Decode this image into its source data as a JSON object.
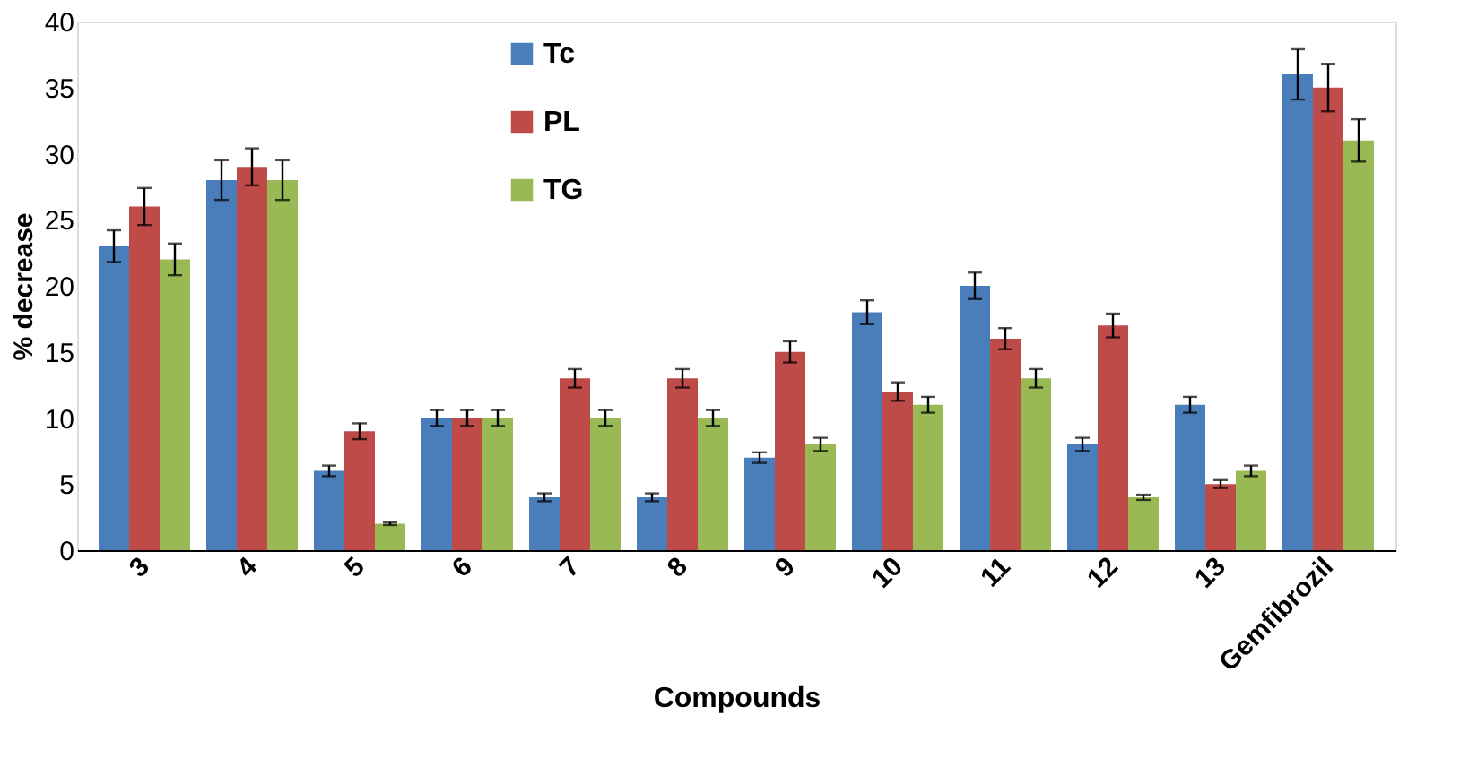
{
  "chart_data": {
    "type": "bar",
    "xlabel": "Compounds",
    "ylabel": "% decrease",
    "categories": [
      "3",
      "4",
      "5",
      "6",
      "7",
      "8",
      "9",
      "10",
      "11",
      "12",
      "13",
      "Gemfibrozil"
    ],
    "series": [
      {
        "name": "Tc",
        "color": "#4a7ebb",
        "values": [
          23,
          28,
          6,
          10,
          4,
          4,
          7,
          18,
          20,
          8,
          11,
          36
        ],
        "errors": [
          1.2,
          1.5,
          0.4,
          0.6,
          0.3,
          0.3,
          0.4,
          0.9,
          1,
          0.5,
          0.6,
          1.9
        ]
      },
      {
        "name": "PL",
        "color": "#be4b48",
        "values": [
          26,
          29,
          9,
          10,
          13,
          13,
          15,
          12,
          16,
          17,
          5,
          35
        ],
        "errors": [
          1.4,
          1.4,
          0.6,
          0.6,
          0.7,
          0.7,
          0.8,
          0.7,
          0.8,
          0.9,
          0.3,
          1.8
        ]
      },
      {
        "name": "TG",
        "color": "#98b954",
        "values": [
          22,
          28,
          2,
          10,
          10,
          10,
          8,
          11,
          13,
          4,
          6,
          31
        ],
        "errors": [
          1.2,
          1.5,
          0.1,
          0.6,
          0.6,
          0.6,
          0.5,
          0.6,
          0.7,
          0.2,
          0.4,
          1.6
        ]
      }
    ],
    "ylim": [
      0,
      40
    ],
    "yticks": [
      0,
      5,
      10,
      15,
      20,
      25,
      30,
      35,
      40
    ],
    "grid": false,
    "legend": "top left"
  }
}
